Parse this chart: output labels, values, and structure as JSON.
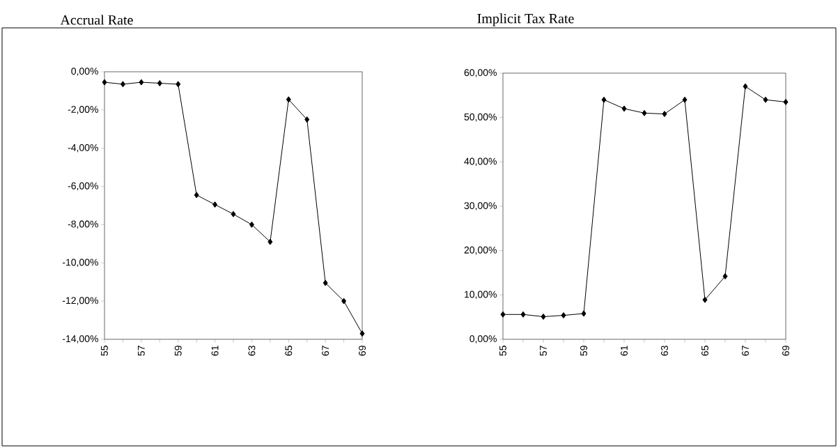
{
  "chart_data": [
    {
      "type": "line",
      "title": "Accrual Rate",
      "x": [
        55,
        56,
        57,
        58,
        59,
        60,
        61,
        62,
        63,
        64,
        65,
        66,
        67,
        68,
        69
      ],
      "xlim": [
        55,
        69
      ],
      "xticks": [
        55,
        {
          "value": 56,
          "label": null
        },
        57,
        {
          "value": 58,
          "label": null
        },
        59,
        {
          "value": 60,
          "label": null
        },
        61,
        {
          "value": 62,
          "label": null
        },
        63,
        {
          "value": 64,
          "label": null
        },
        65,
        {
          "value": 66,
          "label": null
        },
        67,
        {
          "value": 68,
          "label": null
        },
        69
      ],
      "ylim": [
        -14,
        0
      ],
      "yticks": [
        {
          "value": -14,
          "label": "-14,00%"
        },
        {
          "value": -12,
          "label": "-12,00%"
        },
        {
          "value": -10,
          "label": "-10,00%"
        },
        {
          "value": -8,
          "label": "-8,00%"
        },
        {
          "value": -6,
          "label": "-6,00%"
        },
        {
          "value": -4,
          "label": "-4,00%"
        },
        {
          "value": -2,
          "label": "-2,00%"
        },
        {
          "value": 0,
          "label": "0,00%"
        }
      ],
      "series": [
        {
          "color": "#000000",
          "values": [
            -0.55,
            -0.65,
            -0.55,
            -0.6,
            -0.65,
            -6.45,
            -6.95,
            -7.45,
            -8.0,
            -8.9,
            -1.45,
            -2.5,
            -11.05,
            -12.0,
            -13.7
          ]
        }
      ],
      "marker": "diamond",
      "line_style": "solid"
    },
    {
      "type": "line",
      "title": "Implicit Tax Rate",
      "x": [
        55,
        56,
        57,
        58,
        59,
        60,
        61,
        62,
        63,
        64,
        65,
        66,
        67,
        68,
        69
      ],
      "xlim": [
        55,
        69
      ],
      "xticks": [
        55,
        {
          "value": 56,
          "label": null
        },
        57,
        {
          "value": 58,
          "label": null
        },
        59,
        {
          "value": 60,
          "label": null
        },
        61,
        {
          "value": 62,
          "label": null
        },
        63,
        {
          "value": 64,
          "label": null
        },
        65,
        {
          "value": 66,
          "label": null
        },
        67,
        {
          "value": 68,
          "label": null
        },
        69
      ],
      "ylim": [
        0,
        60
      ],
      "yticks": [
        {
          "value": 0,
          "label": "0,00%"
        },
        {
          "value": 10,
          "label": "10,00%"
        },
        {
          "value": 20,
          "label": "20,00%"
        },
        {
          "value": 30,
          "label": "30,00%"
        },
        {
          "value": 40,
          "label": "40,00%"
        },
        {
          "value": 50,
          "label": "50,00%"
        },
        {
          "value": 60,
          "label": "60,00%"
        }
      ],
      "series": [
        {
          "color": "#000000",
          "values": [
            5.6,
            5.6,
            5.1,
            5.4,
            5.8,
            54.0,
            52.0,
            51.0,
            50.8,
            54.0,
            8.9,
            14.2,
            57.0,
            54.0,
            53.5
          ]
        }
      ],
      "marker": "diamond",
      "line_style": "solid"
    }
  ]
}
